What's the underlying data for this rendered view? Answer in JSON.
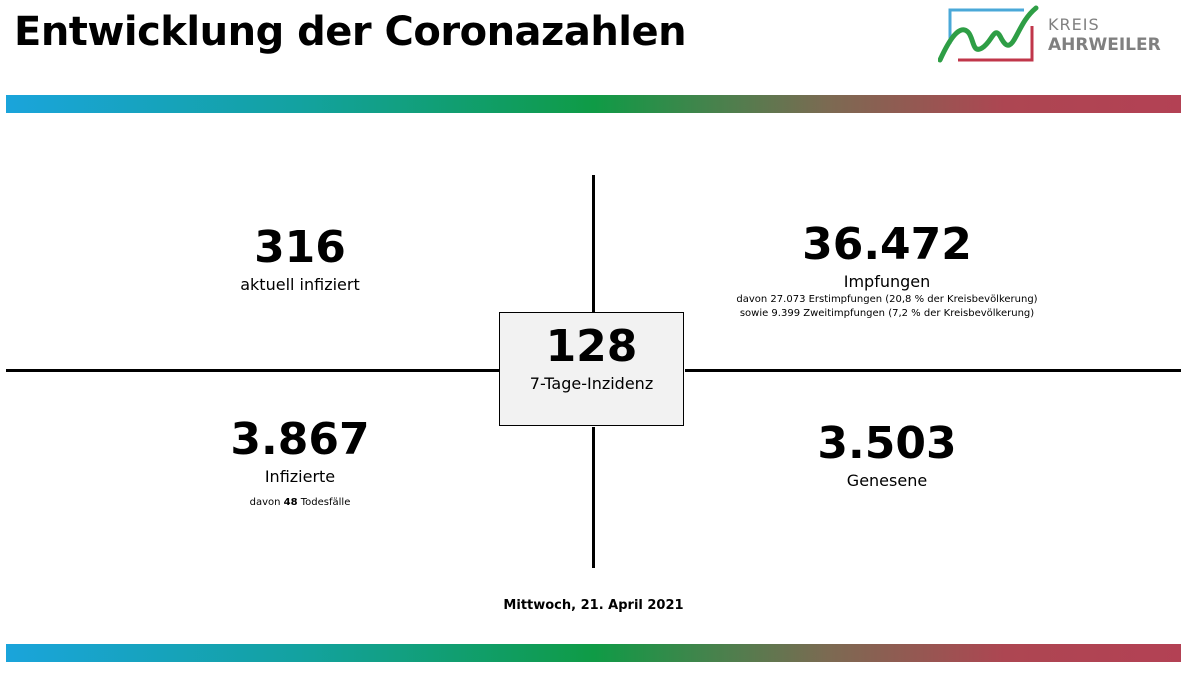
{
  "header": {
    "title": "Entwicklung der Coronazahlen",
    "logo": {
      "line1": "KREIS",
      "line2": "AHRWEILER"
    }
  },
  "colors": {
    "bar_gradient": [
      "#1aa4db",
      "#0f9b46",
      "#b34154"
    ],
    "center_box_bg": "#f2f2f2",
    "logo_blue": "#4aa8d8",
    "logo_green": "#2e9e45",
    "logo_red": "#c0364a",
    "logo_text": "#808080"
  },
  "stats": {
    "active": {
      "value": "316",
      "label": "aktuell infiziert"
    },
    "vaccinations": {
      "value": "36.472",
      "label": "Impfungen",
      "note1": "davon 27.073 Erstimpfungen (20,8 % der Kreisbevölkerung)",
      "note2": "sowie 9.399 Zweitimpfungen (7,2 % der Kreisbevölkerung)"
    },
    "incidence": {
      "value": "128",
      "label": "7-Tage-Inzidenz"
    },
    "infected": {
      "value": "3.867",
      "label": "Infizierte",
      "deaths_prefix": "davon",
      "deaths_value": "48",
      "deaths_suffix": "Todesfälle"
    },
    "recovered": {
      "value": "3.503",
      "label": "Genesene"
    }
  },
  "date": "Mittwoch, 21. April 2021"
}
